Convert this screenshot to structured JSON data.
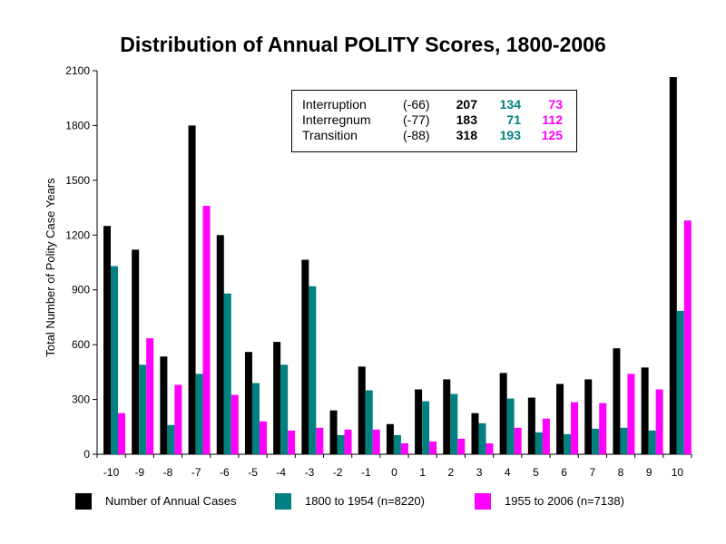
{
  "chart_data": {
    "type": "bar",
    "title": "Distribution of Annual POLITY Scores, 1800-2006",
    "xlabel": "",
    "ylabel": "Total Number of Polity Case Years",
    "ylim": [
      0,
      2100
    ],
    "yticks": [
      0,
      300,
      600,
      900,
      1200,
      1500,
      1800,
      2100
    ],
    "grid": false,
    "legend_position": "bottom",
    "categories": [
      "-10",
      "-9",
      "-8",
      "-7",
      "-6",
      "-5",
      "-4",
      "-3",
      "-2",
      "-1",
      "0",
      "1",
      "2",
      "3",
      "4",
      "5",
      "6",
      "7",
      "8",
      "9",
      "10"
    ],
    "series": [
      {
        "name": "Number of Annual Cases",
        "color": "#000000",
        "values": [
          1250,
          1120,
          535,
          1800,
          1200,
          560,
          615,
          1065,
          240,
          480,
          165,
          355,
          410,
          225,
          445,
          310,
          385,
          410,
          580,
          475,
          2065
        ]
      },
      {
        "name": "1800 to 1954 (n=8220)",
        "color": "#008080",
        "values": [
          1030,
          490,
          160,
          440,
          880,
          390,
          490,
          920,
          105,
          350,
          105,
          290,
          330,
          170,
          305,
          120,
          110,
          140,
          145,
          130,
          785
        ]
      },
      {
        "name": "1955 to 2006 (n=7138)",
        "color": "#ff00ff",
        "values": [
          225,
          635,
          380,
          1360,
          325,
          180,
          130,
          145,
          135,
          135,
          60,
          70,
          85,
          60,
          145,
          195,
          285,
          280,
          440,
          355,
          1280
        ]
      }
    ],
    "inset_table": [
      {
        "name": "Interruption",
        "code": "(-66)",
        "total": "207",
        "early": "134",
        "late": "73"
      },
      {
        "name": "Interregnum",
        "code": "(-77)",
        "total": "183",
        "early": "71",
        "late": "112"
      },
      {
        "name": "Transition",
        "code": "(-88)",
        "total": "318",
        "early": "193",
        "late": "125"
      }
    ]
  }
}
